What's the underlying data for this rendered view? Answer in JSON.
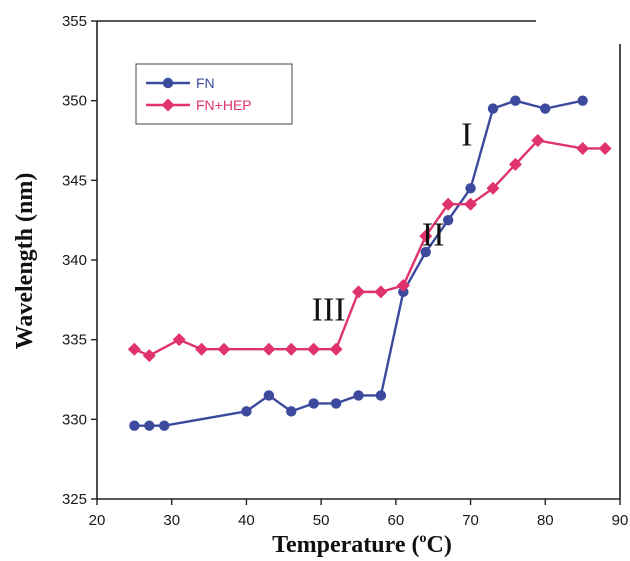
{
  "chart_data": {
    "type": "line",
    "xlabel": "Temperature (oC)",
    "xlabel_main": "Temperature (",
    "xlabel_sup": "o",
    "xlabel_tail": "C)",
    "ylabel": "Wavelength (nm)",
    "xlim": [
      20,
      90
    ],
    "ylim": [
      325,
      355
    ],
    "xticks": [
      20,
      30,
      40,
      50,
      60,
      70,
      80,
      90
    ],
    "yticks": [
      325,
      330,
      335,
      340,
      345,
      350,
      355
    ],
    "grid": false,
    "legend_position": "top-left",
    "series": [
      {
        "name": "FN",
        "color": "#3c4a9e",
        "marker": "circle",
        "x": [
          25,
          27,
          29,
          40,
          43,
          46,
          49,
          52,
          55,
          58,
          61,
          64,
          67,
          70,
          73,
          76,
          80,
          85
        ],
        "y": [
          329.6,
          329.6,
          329.6,
          330.5,
          331.5,
          330.5,
          331.0,
          331.0,
          331.5,
          331.5,
          338.0,
          340.5,
          342.5,
          344.5,
          349.5,
          350.0,
          349.5,
          350.0
        ]
      },
      {
        "name": "FN+HEP",
        "color": "#e0336e",
        "marker": "diamond",
        "x": [
          25,
          27,
          31,
          34,
          37,
          43,
          46,
          49,
          52,
          55,
          58,
          61,
          64,
          67,
          70,
          73,
          76,
          79,
          85,
          88
        ],
        "y": [
          334.4,
          334.0,
          335.0,
          334.4,
          334.4,
          334.4,
          334.4,
          334.4,
          334.4,
          338.0,
          338.0,
          338.4,
          341.5,
          343.5,
          343.5,
          344.5,
          346.0,
          347.5,
          347.0,
          347.0
        ]
      }
    ],
    "annotations": [
      {
        "text": "I",
        "x": 69.5,
        "y": 347.2
      },
      {
        "text": "II",
        "x": 65.0,
        "y": 340.9
      },
      {
        "text": "III",
        "x": 51.0,
        "y": 336.2
      }
    ]
  }
}
